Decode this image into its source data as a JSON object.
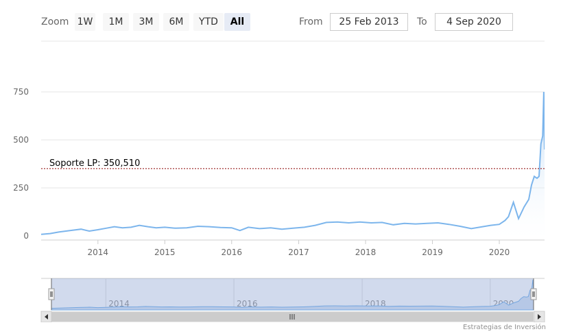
{
  "toolbar": {
    "zoom_label": "Zoom",
    "buttons": [
      "1W",
      "1M",
      "3M",
      "6M",
      "YTD",
      "All"
    ],
    "selected": "All",
    "from_label": "From",
    "from_value": "25 Feb 2013",
    "to_label": "To",
    "to_value": "4 Sep 2020"
  },
  "credit": "Estrategias de Inversión",
  "colors": {
    "line": "#7cb5ec",
    "area_top": "#a8cdf0",
    "support": "#8b0000",
    "navigator_mask": "rgba(102,133,194,0.3)"
  },
  "chart_data": {
    "type": "area",
    "title": "",
    "xlabel": "",
    "ylabel": "",
    "xlim": [
      "2013-02-25",
      "2020-09-04"
    ],
    "ylim": [
      0,
      750
    ],
    "y_ticks": [
      "0",
      "250",
      "500",
      "750"
    ],
    "x_ticks": [
      "2014",
      "2015",
      "2016",
      "2017",
      "2018",
      "2019",
      "2020"
    ],
    "grid": true,
    "legend": "none",
    "support_line": {
      "label": "Soporte LP: 350,510",
      "value": 350.51
    },
    "navigator_ticks": [
      "2014",
      "2016",
      "2018",
      "2020"
    ],
    "series": [
      {
        "x": [
          "2013-02-25",
          "2013-04-15",
          "2013-06-01",
          "2013-08-01",
          "2013-10-01",
          "2013-11-15",
          "2014-01-01",
          "2014-02-15",
          "2014-04-01",
          "2014-05-15",
          "2014-07-01",
          "2014-08-15",
          "2014-10-01",
          "2014-11-15",
          "2015-01-01",
          "2015-03-01",
          "2015-05-01",
          "2015-07-01",
          "2015-09-01",
          "2015-11-01",
          "2016-01-01",
          "2016-02-15",
          "2016-04-01",
          "2016-06-01",
          "2016-08-01",
          "2016-10-01",
          "2016-12-01",
          "2017-02-01",
          "2017-04-01",
          "2017-06-01",
          "2017-08-01",
          "2017-10-01",
          "2017-12-01",
          "2018-02-01",
          "2018-04-01",
          "2018-06-01",
          "2018-08-01",
          "2018-10-01",
          "2018-12-01",
          "2019-02-01",
          "2019-04-01",
          "2019-06-01",
          "2019-08-01",
          "2019-10-01",
          "2019-11-15",
          "2020-01-01",
          "2020-02-01",
          "2020-02-20",
          "2020-03-18",
          "2020-04-15",
          "2020-05-15",
          "2020-06-10",
          "2020-06-25",
          "2020-07-10",
          "2020-07-25",
          "2020-08-05",
          "2020-08-15",
          "2020-08-25",
          "2020-08-31",
          "2020-09-04"
        ],
        "y": [
          8,
          12,
          20,
          28,
          35,
          25,
          32,
          40,
          48,
          42,
          45,
          55,
          48,
          42,
          45,
          40,
          42,
          50,
          48,
          44,
          42,
          28,
          45,
          38,
          42,
          35,
          40,
          45,
          55,
          70,
          72,
          68,
          72,
          68,
          70,
          58,
          65,
          62,
          65,
          68,
          60,
          50,
          38,
          48,
          55,
          60,
          80,
          100,
          175,
          90,
          150,
          190,
          265,
          310,
          300,
          310,
          480,
          520,
          750,
          450
        ]
      }
    ]
  }
}
